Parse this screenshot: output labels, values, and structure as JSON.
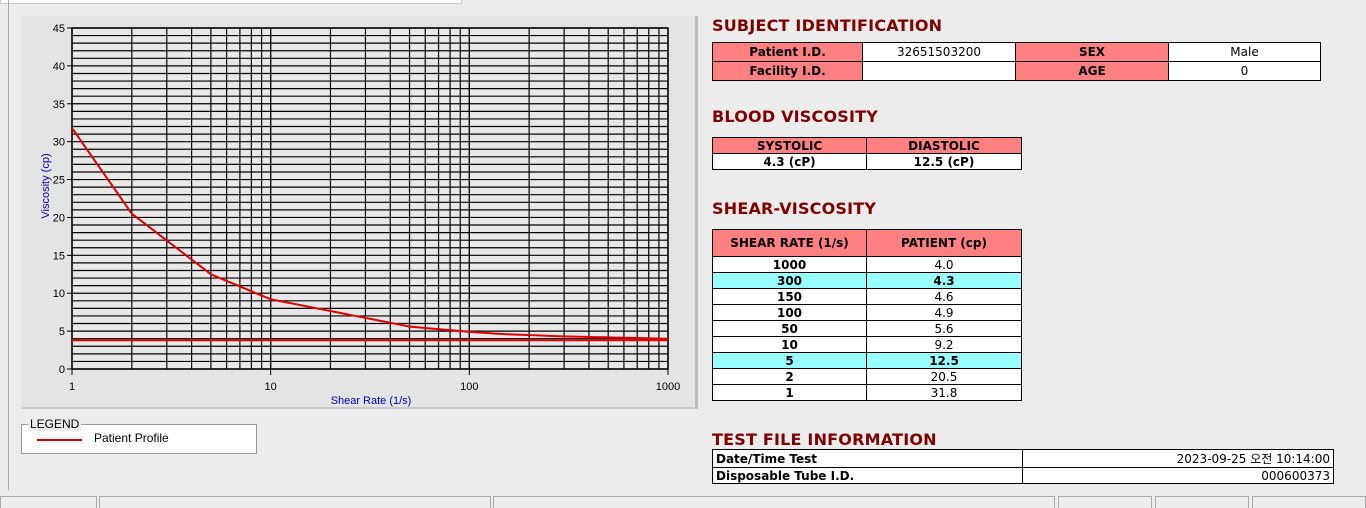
{
  "chart_data": {
    "type": "line",
    "xlabel": "Shear Rate (1/s)",
    "ylabel": "Viscosity (cp)",
    "xscale": "log",
    "xlim": [
      1,
      1000
    ],
    "ylim": [
      0,
      45
    ],
    "xticks": [
      "1",
      "10",
      "100",
      "1000"
    ],
    "yticks": [
      "0",
      "5",
      "10",
      "15",
      "20",
      "25",
      "30",
      "35",
      "40",
      "45"
    ],
    "grid": true,
    "legend_position": "below-left",
    "series": [
      {
        "name": "Patient Profile",
        "color": "#e00000",
        "x": [
          1,
          2,
          5,
          10,
          50,
          100,
          150,
          300,
          1000
        ],
        "y": [
          31.8,
          20.5,
          12.5,
          9.2,
          5.6,
          4.9,
          4.6,
          4.3,
          4.0
        ]
      },
      {
        "color": "#e00000",
        "x": [
          1,
          1000
        ],
        "y": [
          3.8,
          3.8
        ]
      }
    ]
  },
  "legend": {
    "title": "LEGEND",
    "items": [
      {
        "label": "Patient Profile",
        "color": "#e00000"
      }
    ]
  },
  "subject": {
    "title": "SUBJECT IDENTIFICATION",
    "patient_id_label": "Patient I.D.",
    "patient_id": "32651503200",
    "sex_label": "SEX",
    "sex": "Male",
    "facility_label": "Facility I.D.",
    "facility": "",
    "age_label": "AGE",
    "age": "0"
  },
  "blood": {
    "title": "BLOOD VISCOSITY",
    "systolic_label": "SYSTOLIC",
    "diastolic_label": "DIASTOLIC",
    "systolic": "4.3 (cP)",
    "diastolic": "12.5 (cP)"
  },
  "shear": {
    "title": "SHEAR-VISCOSITY",
    "col1": "SHEAR RATE (1/s)",
    "col2": "PATIENT (cp)",
    "rows": [
      [
        "1000",
        "4.0",
        false
      ],
      [
        "300",
        "4.3",
        true
      ],
      [
        "150",
        "4.6",
        false
      ],
      [
        "100",
        "4.9",
        false
      ],
      [
        "50",
        "5.6",
        false
      ],
      [
        "10",
        "9.2",
        false
      ],
      [
        "5",
        "12.5",
        true
      ],
      [
        "2",
        "20.5",
        false
      ],
      [
        "1",
        "31.8",
        false
      ]
    ]
  },
  "testfile": {
    "title": "TEST FILE INFORMATION",
    "date_label": "Date/Time Test",
    "date": "2023-09-25   오전 10:14:00",
    "tube_label": "Disposable Tube I.D.",
    "tube": "000600373"
  },
  "colors": {
    "header_cell": "#ff8080",
    "highlight_row": "#99ffff",
    "section_title": "#800000"
  }
}
